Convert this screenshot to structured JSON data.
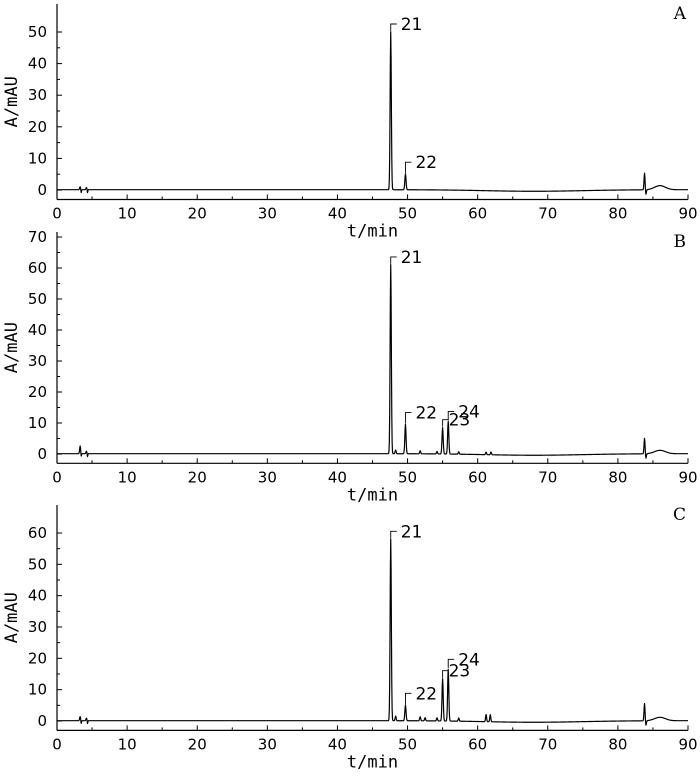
{
  "chart_data": [
    {
      "type": "line",
      "panel_label": "A",
      "xlabel": "t/min",
      "ylabel": "A/mAU",
      "xlim": [
        0,
        90
      ],
      "ylim": [
        -3,
        55
      ],
      "xticks": [
        0,
        10,
        20,
        30,
        40,
        50,
        60,
        70,
        80,
        90
      ],
      "yticks": [
        0,
        10,
        20,
        30,
        40,
        50
      ],
      "peaks": [
        {
          "label": "21",
          "x": 47.6,
          "y": 50
        },
        {
          "label": "22",
          "x": 49.7,
          "y": 5
        }
      ],
      "minor_features": [
        {
          "x": 3.3,
          "y": 0.9
        },
        {
          "x": 4.2,
          "y": 0.7
        },
        {
          "x": 83.8,
          "y": 5.3
        }
      ],
      "baseline_hump": {
        "x": 86,
        "y": 1.3
      }
    },
    {
      "type": "line",
      "panel_label": "B",
      "xlabel": "t/min",
      "ylabel": "A/mAU",
      "xlim": [
        0,
        90
      ],
      "ylim": [
        -3,
        70
      ],
      "xticks": [
        0,
        10,
        20,
        30,
        40,
        50,
        60,
        70,
        80,
        90
      ],
      "yticks": [
        0,
        10,
        20,
        30,
        40,
        50,
        60,
        70
      ],
      "peaks": [
        {
          "label": "21",
          "x": 47.6,
          "y": 61
        },
        {
          "label": "22",
          "x": 49.7,
          "y": 9.5
        },
        {
          "label": "23",
          "x": 55.0,
          "y": 8.5
        },
        {
          "label": "24",
          "x": 55.8,
          "y": 10.5
        }
      ],
      "minor_features": [
        {
          "x": 3.3,
          "y": 2.5
        },
        {
          "x": 4.2,
          "y": 0.8
        },
        {
          "x": 48.3,
          "y": 1.2
        },
        {
          "x": 51.8,
          "y": 1.0
        },
        {
          "x": 54.2,
          "y": 0.8
        },
        {
          "x": 57.3,
          "y": 0.8
        },
        {
          "x": 61.2,
          "y": 0.8
        },
        {
          "x": 61.9,
          "y": 0.9
        },
        {
          "x": 83.8,
          "y": 5.0
        }
      ],
      "baseline_hump": {
        "x": 86,
        "y": 1.1
      }
    },
    {
      "type": "line",
      "panel_label": "C",
      "xlabel": "t/min",
      "ylabel": "A/mAU",
      "xlim": [
        0,
        90
      ],
      "ylim": [
        -3,
        65
      ],
      "xticks": [
        0,
        10,
        20,
        30,
        40,
        50,
        60,
        70,
        80,
        90
      ],
      "yticks": [
        0,
        10,
        20,
        30,
        40,
        50,
        60
      ],
      "peaks": [
        {
          "label": "21",
          "x": 47.6,
          "y": 58
        },
        {
          "label": "22",
          "x": 49.7,
          "y": 5
        },
        {
          "label": "23",
          "x": 55.0,
          "y": 13.5
        },
        {
          "label": "24",
          "x": 55.8,
          "y": 16.5
        }
      ],
      "minor_features": [
        {
          "x": 3.3,
          "y": 1.3
        },
        {
          "x": 4.2,
          "y": 0.8
        },
        {
          "x": 48.3,
          "y": 1.5
        },
        {
          "x": 51.8,
          "y": 1.3
        },
        {
          "x": 52.5,
          "y": 1.0
        },
        {
          "x": 54.2,
          "y": 1.0
        },
        {
          "x": 57.3,
          "y": 1.0
        },
        {
          "x": 61.2,
          "y": 2.3
        },
        {
          "x": 61.8,
          "y": 2.3
        },
        {
          "x": 83.8,
          "y": 5.5
        }
      ],
      "baseline_hump": {
        "x": 86,
        "y": 1.1
      }
    }
  ]
}
